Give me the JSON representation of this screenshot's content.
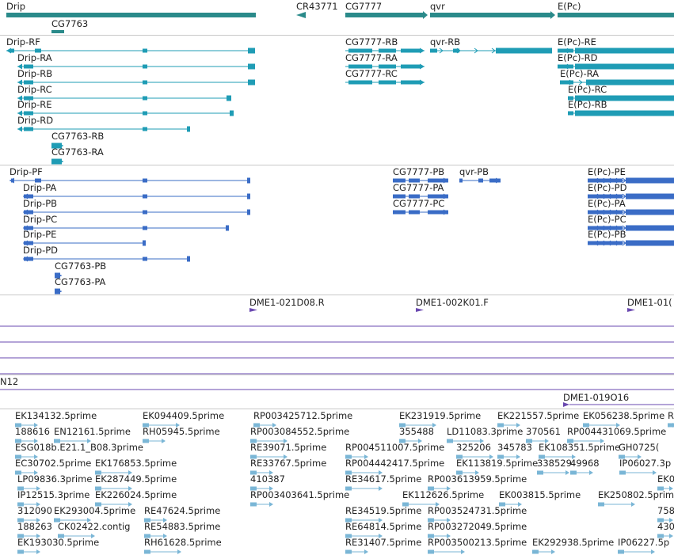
{
  "colors": {
    "gene": "#2a8a8a",
    "flybase_transcript": "#1f9cb5",
    "gb_transcript": "#3a6cc6",
    "clone": "#6a49b0",
    "est": "#7ab6d6",
    "separator": "#c8c8c8"
  },
  "genes": [
    {
      "label": "Drip",
      "kind": "rect"
    },
    {
      "label": "CG7763",
      "kind": "small"
    },
    {
      "label": "CR43771",
      "kind": "arrow-left"
    },
    {
      "label": "CG7777",
      "kind": "arrow-right"
    },
    {
      "label": "qvr",
      "kind": "arrow-right"
    },
    {
      "label": "E(Pc)",
      "kind": "arrow-right"
    }
  ],
  "flybase_transcripts": [
    "Drip-RF",
    "Drip-RA",
    "Drip-RB",
    "Drip-RC",
    "Drip-RE",
    "Drip-RD",
    "CG7763-RB",
    "CG7763-RA",
    "CG7777-RB",
    "CG7777-RA",
    "CG7777-RC",
    "qvr-RB",
    "E(Pc)-RE",
    "E(Pc)-RD",
    "E(Pc)-RA",
    "E(Pc)-RC",
    "E(Pc)-RB"
  ],
  "gb_transcripts": [
    "Drip-PF",
    "Drip-PA",
    "Drip-PB",
    "Drip-PC",
    "Drip-PE",
    "Drip-PD",
    "CG7763-PB",
    "CG7763-PA",
    "CG7777-PB",
    "CG7777-PA",
    "CG7777-PC",
    "qvr-PB",
    "E(Pc)-PE",
    "E(Pc)-PD",
    "E(Pc)-PA",
    "E(Pc)-PC",
    "E(Pc)-PB"
  ],
  "clones": [
    "DME1-021D08.R",
    "DME1-002K01.F",
    "DME1-01("
  ],
  "clones_b": [
    "N12",
    "DME1-019O16"
  ],
  "ests": [
    [
      "EK134132.5prime",
      "EK094409.5prime",
      "RP003425712.5prime",
      "EK231919.5prime",
      "EK221557.5prime",
      "EK056238.5prime",
      "R"
    ],
    [
      "188616",
      "EN12161.5prime",
      "RH05945.5prime",
      "RP003084552.5prime",
      "355488",
      "LD11083.3prime",
      "370561",
      "RP004431069.5prime"
    ],
    [
      "ESG018b.E21.1_B08.3prime",
      "RE39071.5prime",
      "RP004511007.5prime",
      "325206",
      "345783",
      "EK108351.5prime",
      "GH0725("
    ],
    [
      "EC30702.5prime",
      "EK176853.5prime",
      "RE33767.5prime",
      "RP004442417.5prime",
      "EK113819.5prime",
      "338529",
      "49968",
      "IP06027.3p"
    ],
    [
      "LP09836.3prime",
      "EK287449.5prime",
      "410387",
      "RE34617.5prime",
      "RP003613959.5prime",
      "EK0"
    ],
    [
      "IP12515.3prime",
      "EK226024.5prime",
      "RP003403641.5prime",
      "EK112626.5prime",
      "EK003815.5prime",
      "EK250802.5prime"
    ],
    [
      "312090",
      "EK293004.5prime",
      "RE47624.5prime",
      "RE34519.5prime",
      "RP003524731.5prime",
      "758"
    ],
    [
      "188263",
      "CK02422.contig",
      "RE54883.5prime",
      "RE64814.5prime",
      "RP003272049.5prime",
      "430"
    ],
    [
      "EK193030.5prime",
      "RH61628.5prime",
      "RE31407.5prime",
      "RP003500213.5prime",
      "EK292938.5prime",
      "IP06227.5p"
    ]
  ]
}
